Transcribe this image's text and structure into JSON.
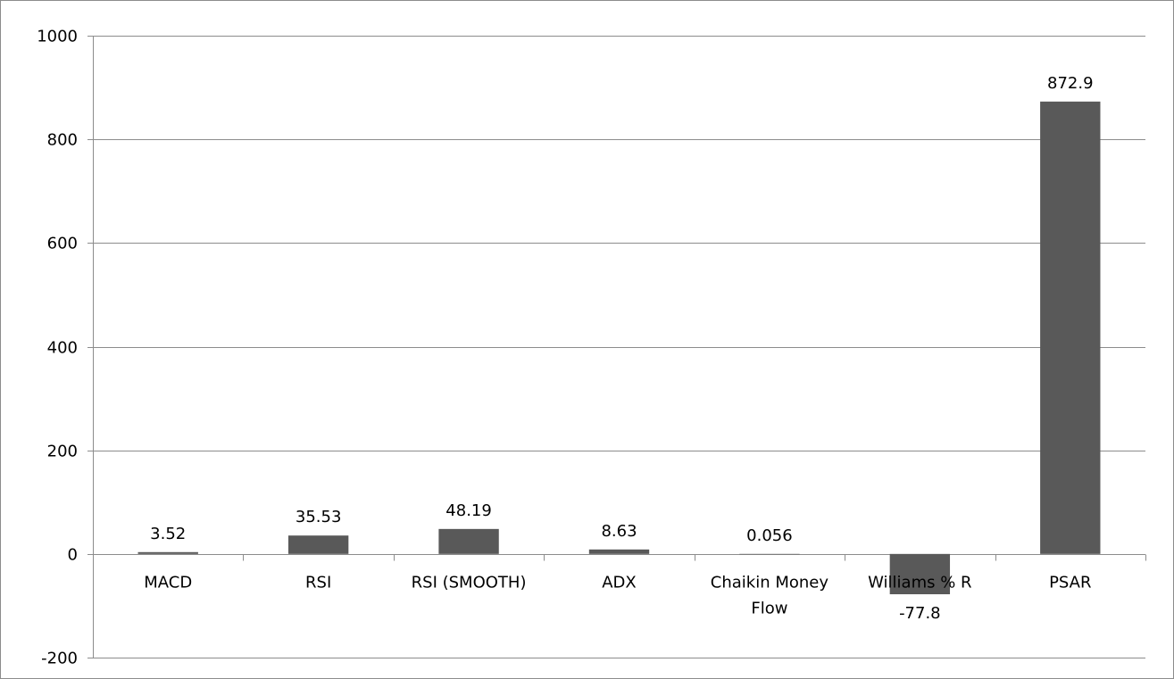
{
  "chart_data": {
    "type": "bar",
    "title": "",
    "xlabel": "",
    "ylabel": "",
    "categories": [
      "MACD",
      "RSI",
      "RSI (SMOOTH)",
      "ADX",
      "Chaikin Money Flow",
      "Williams % R",
      "PSAR"
    ],
    "category_lines": [
      [
        "MACD"
      ],
      [
        "RSI"
      ],
      [
        "RSI (SMOOTH)"
      ],
      [
        "ADX"
      ],
      [
        "Chaikin Money",
        "Flow"
      ],
      [
        "Williams % R"
      ],
      [
        "PSAR"
      ]
    ],
    "values": [
      3.52,
      35.53,
      48.19,
      8.63,
      0.056,
      -77.8,
      872.9
    ],
    "data_labels": [
      "3.52",
      "35.53",
      "48.19",
      "8.63",
      "0.056",
      "-77.8",
      "872.9"
    ],
    "ylim": [
      -200,
      1000
    ],
    "yticks": [
      -200,
      0,
      200,
      400,
      600,
      800,
      1000
    ],
    "ytick_labels": [
      "-200",
      "0",
      "200",
      "400",
      "600",
      "800",
      "1000"
    ],
    "grid": true,
    "legend": "none",
    "bar_color": "#595959",
    "grid_color": "#8c8c8c"
  }
}
